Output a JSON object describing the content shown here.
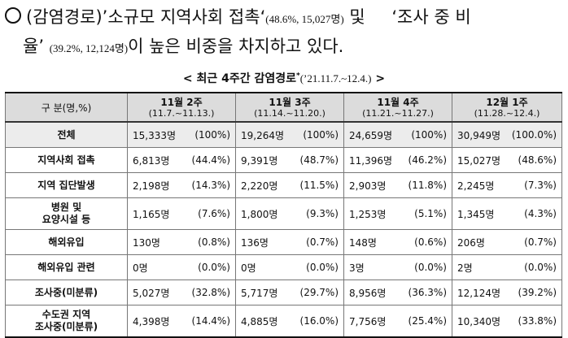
{
  "bullet": {
    "part1": "(감염경로)’소규모 지역사회 접촉‘",
    "part1_small": "(48.6%, 15,027명)",
    "part2": " 및 ",
    "part3": "‘조사 중 비",
    "line2_a": "율’",
    "line2_small": "(39.2%, 12,124명)",
    "line2_b": "이 높은 비중을 차지하고 있다."
  },
  "caption": {
    "title": "< 최근 4주간 감염경로",
    "star": "*",
    "date": "(’21.11.7.~12.4.)",
    "close": ">"
  },
  "table": {
    "header_label": "구 분(명,%)",
    "weeks": [
      {
        "name": "11월 2주",
        "range": "(11.7.~11.13.)"
      },
      {
        "name": "11월 3주",
        "range": "(11.14.~11.20.)"
      },
      {
        "name": "11월 4주",
        "range": "(11.21.~11.27.)"
      },
      {
        "name": "12월 1주",
        "range": "(11.28.~12.4.)"
      }
    ],
    "rows": [
      {
        "label": "전체",
        "cells": [
          [
            "15,333명",
            "(100%)"
          ],
          [
            "19,264명",
            "(100%)"
          ],
          [
            "24,659명",
            "(100%)"
          ],
          [
            "30,949명",
            "(100.0%)"
          ]
        ]
      },
      {
        "label": "지역사회 접촉",
        "cells": [
          [
            "6,813명",
            "(44.4%)"
          ],
          [
            "9,391명",
            "(48.7%)"
          ],
          [
            "11,396명",
            "(46.2%)"
          ],
          [
            "15,027명",
            "(48.6%)"
          ]
        ]
      },
      {
        "label": "지역 집단발생",
        "cells": [
          [
            "2,198명",
            "(14.3%)"
          ],
          [
            "2,220명",
            "(11.5%)"
          ],
          [
            "2,903명",
            "(11.8%)"
          ],
          [
            "2,245명",
            "(7.3%)"
          ]
        ]
      },
      {
        "label_1": "병원 및",
        "label_2": "요양시설 등",
        "cells": [
          [
            "1,165명",
            "(7.6%)"
          ],
          [
            "1,800명",
            "(9.3%)"
          ],
          [
            "1,253명",
            "(5.1%)"
          ],
          [
            "1,345명",
            "(4.3%)"
          ]
        ]
      },
      {
        "label": "해외유입",
        "cells": [
          [
            "130명",
            "(0.8%)"
          ],
          [
            "136명",
            "(0.7%)"
          ],
          [
            "148명",
            "(0.6%)"
          ],
          [
            "206명",
            "(0.7%)"
          ]
        ]
      },
      {
        "label": "해외유입 관련",
        "cells": [
          [
            "0명",
            "(0.0%)"
          ],
          [
            "0명",
            "(0.0%)"
          ],
          [
            "3명",
            "(0.0%)"
          ],
          [
            "2명",
            "(0.0%)"
          ]
        ]
      },
      {
        "label": "조사중(미분류)",
        "cells": [
          [
            "5,027명",
            "(32.8%)"
          ],
          [
            "5,717명",
            "(29.7%)"
          ],
          [
            "8,956명",
            "(36.3%)"
          ],
          [
            "12,124명",
            "(39.2%)"
          ]
        ]
      },
      {
        "label_1": "수도권 지역",
        "label_2": "조사중(미분류)",
        "cells": [
          [
            "4,398명",
            "(14.4%)"
          ],
          [
            "4,885명",
            "(16.0%)"
          ],
          [
            "7,756명",
            "(25.4%)"
          ],
          [
            "10,340명",
            "(33.8%)"
          ]
        ]
      }
    ]
  }
}
